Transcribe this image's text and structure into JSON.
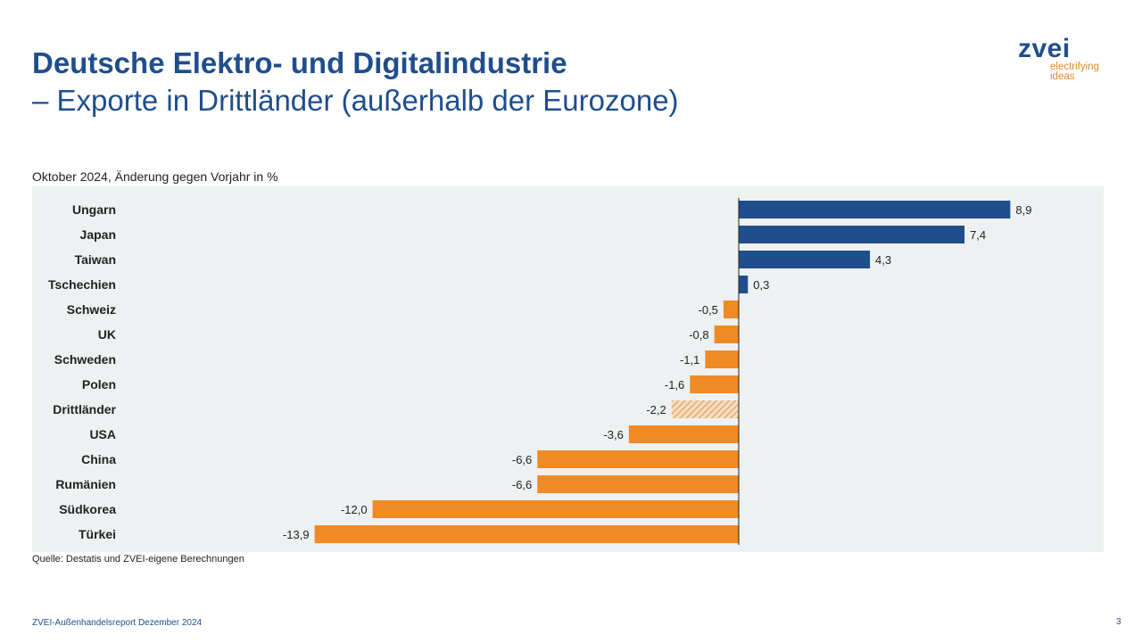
{
  "title_line1": "Deutsche Elektro- und Digitalindustrie",
  "title_line2": "– Exporte in Drittländer (außerhalb der Eurozone)",
  "logo": {
    "name": "zvei",
    "tagline1": "electrifying",
    "tagline2": "ideas"
  },
  "subtitle": "Oktober 2024, Änderung gegen Vorjahr in %",
  "source": "Quelle: Destatis und ZVEI-eigene Berechnungen",
  "footer": "ZVEI-Außenhandelsreport Dezember 2024",
  "page_number": "3",
  "colors": {
    "positive": "#1f4e8c",
    "negative": "#f08a24",
    "total": "#f08a24",
    "background": "#eef1f1"
  },
  "chart_data": {
    "type": "bar",
    "orientation": "horizontal",
    "title": "Oktober 2024, Änderung gegen Vorjahr in %",
    "categories": [
      "Ungarn",
      "Japan",
      "Taiwan",
      "Tschechien",
      "Schweiz",
      "UK",
      "Schweden",
      "Polen",
      "Drittländer",
      "USA",
      "China",
      "Rumänien",
      "Südkorea",
      "Türkei"
    ],
    "values": [
      8.9,
      7.4,
      4.3,
      0.3,
      -0.5,
      -0.8,
      -1.1,
      -1.6,
      -2.2,
      -3.6,
      -6.6,
      -6.6,
      -12.0,
      -13.9
    ],
    "labels": [
      "8,9",
      "7,4",
      "4,3",
      "0,3",
      "-0,5",
      "-0,8",
      "-1,1",
      "-1,6",
      "-2,2",
      "-3,6",
      "-6,6",
      "-6,6",
      "-12,0",
      "-13,9"
    ],
    "highlight": "Drittländer",
    "xlim": [
      -13.9,
      8.9
    ]
  }
}
